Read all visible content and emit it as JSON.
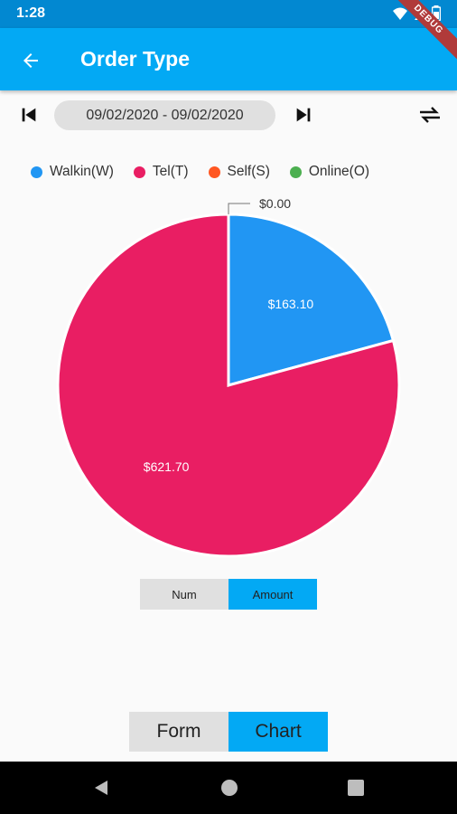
{
  "status_bar": {
    "time": "1:28",
    "debug_label": "DEBUG"
  },
  "app_bar": {
    "title": "Order Type"
  },
  "date_range": {
    "label": "09/02/2020 - 09/02/2020"
  },
  "legend": [
    {
      "label": "Walkin(W)",
      "color": "#2196f3"
    },
    {
      "label": "Tel(T)",
      "color": "#e91e63"
    },
    {
      "label": "Self(S)",
      "color": "#ff5722"
    },
    {
      "label": "Online(O)",
      "color": "#4caf50"
    }
  ],
  "chart_data": {
    "type": "pie",
    "slices": [
      {
        "name": "Walkin(W)",
        "value": 163.1,
        "label": "$163.10",
        "color": "#2196f3"
      },
      {
        "name": "Tel(T)",
        "value": 621.7,
        "label": "$621.70",
        "color": "#e91e63"
      },
      {
        "name": "Self(S)",
        "value": 0.0,
        "label": "$0.00",
        "color": "#ff5722"
      },
      {
        "name": "Online(O)",
        "value": 0.0,
        "label": "",
        "color": "#4caf50"
      }
    ]
  },
  "metric_toggle": {
    "num_label": "Num",
    "amount_label": "Amount",
    "selected": "Amount"
  },
  "view_toggle": {
    "form_label": "Form",
    "chart_label": "Chart",
    "selected": "Chart"
  },
  "colors": {
    "primary": "#03a9f4",
    "status_bar": "#0288d1",
    "toggle_off": "#e0e0e0"
  }
}
